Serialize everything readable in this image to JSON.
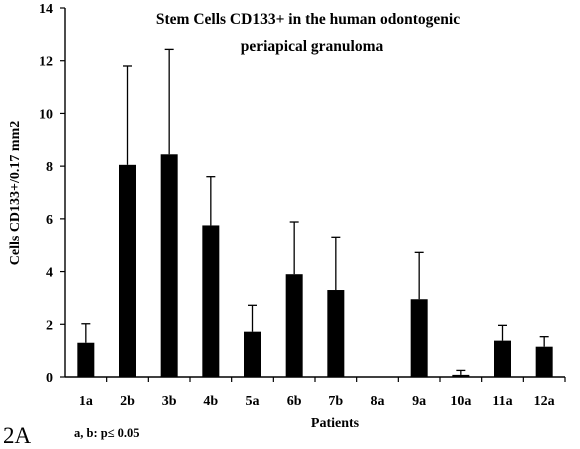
{
  "panel_label": "2A",
  "note": "a, b: p≤ 0.05",
  "chart_data": {
    "type": "bar",
    "title_lines": [
      "Stem Cells CD133+ in the human odontogenic",
      "periapical granuloma"
    ],
    "xlabel": "Patients",
    "ylabel": "Cells CD133+/0.17 mm2",
    "ylim": [
      0,
      14
    ],
    "yticks": [
      0,
      2,
      4,
      6,
      8,
      10,
      12,
      14
    ],
    "categories": [
      "1a",
      "2b",
      "3b",
      "4b",
      "5a",
      "6b",
      "7b",
      "8a",
      "9a",
      "10a",
      "11a",
      "12a"
    ],
    "values": [
      1.3,
      8.05,
      8.45,
      5.75,
      1.72,
      3.9,
      3.3,
      0,
      2.95,
      0.08,
      1.38,
      1.15
    ],
    "errors": [
      0.72,
      3.75,
      3.98,
      1.85,
      1.0,
      1.98,
      2.0,
      0,
      1.78,
      0.17,
      0.58,
      0.38
    ],
    "bar_color": "#000000",
    "grid": false,
    "legend": "none"
  }
}
